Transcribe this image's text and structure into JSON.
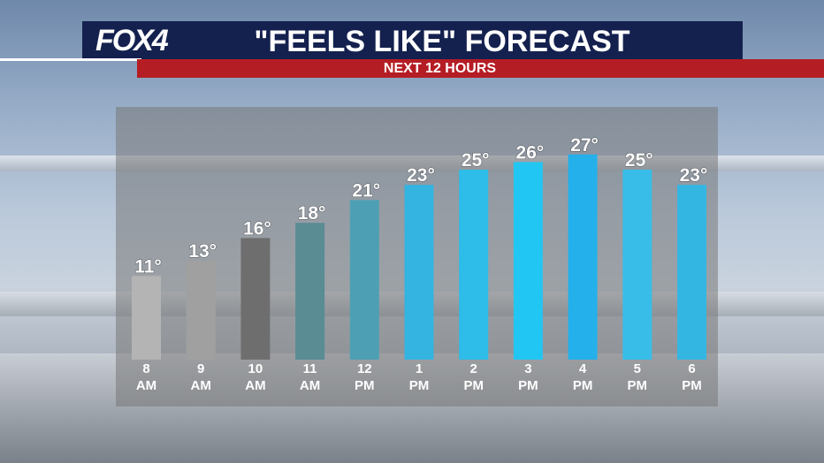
{
  "header": {
    "logo_text": "FOX4",
    "title": "\"FEELS LIKE\" FORECAST",
    "subtitle": "NEXT 12 HOURS"
  },
  "colors": {
    "header_bg": "#14214f",
    "subtitle_bg": "#b51d24"
  },
  "chart_data": {
    "type": "bar",
    "title": "\"FEELS LIKE\" FORECAST",
    "subtitle": "NEXT 12 HOURS",
    "unit": "°",
    "categories": [
      [
        "8",
        "AM"
      ],
      [
        "9",
        "AM"
      ],
      [
        "10",
        "AM"
      ],
      [
        "11",
        "AM"
      ],
      [
        "12",
        "PM"
      ],
      [
        "1",
        "PM"
      ],
      [
        "2",
        "PM"
      ],
      [
        "3",
        "PM"
      ],
      [
        "4",
        "PM"
      ],
      [
        "5",
        "PM"
      ],
      [
        "6",
        "PM"
      ]
    ],
    "values": [
      11,
      13,
      16,
      18,
      21,
      23,
      25,
      26,
      27,
      25,
      23
    ],
    "labels": [
      "11°",
      "13°",
      "16°",
      "18°",
      "21°",
      "23°",
      "25°",
      "26°",
      "27°",
      "25°",
      "23°"
    ],
    "bar_colors": [
      "#b4b4b4",
      "#a0a0a0",
      "#6e6e6e",
      "#5a8c94",
      "#4da0b4",
      "#34b4e0",
      "#2ebce8",
      "#22c6f2",
      "#24b0ea",
      "#38bde8",
      "#34b6e2"
    ],
    "grid": false,
    "legend": "none"
  }
}
